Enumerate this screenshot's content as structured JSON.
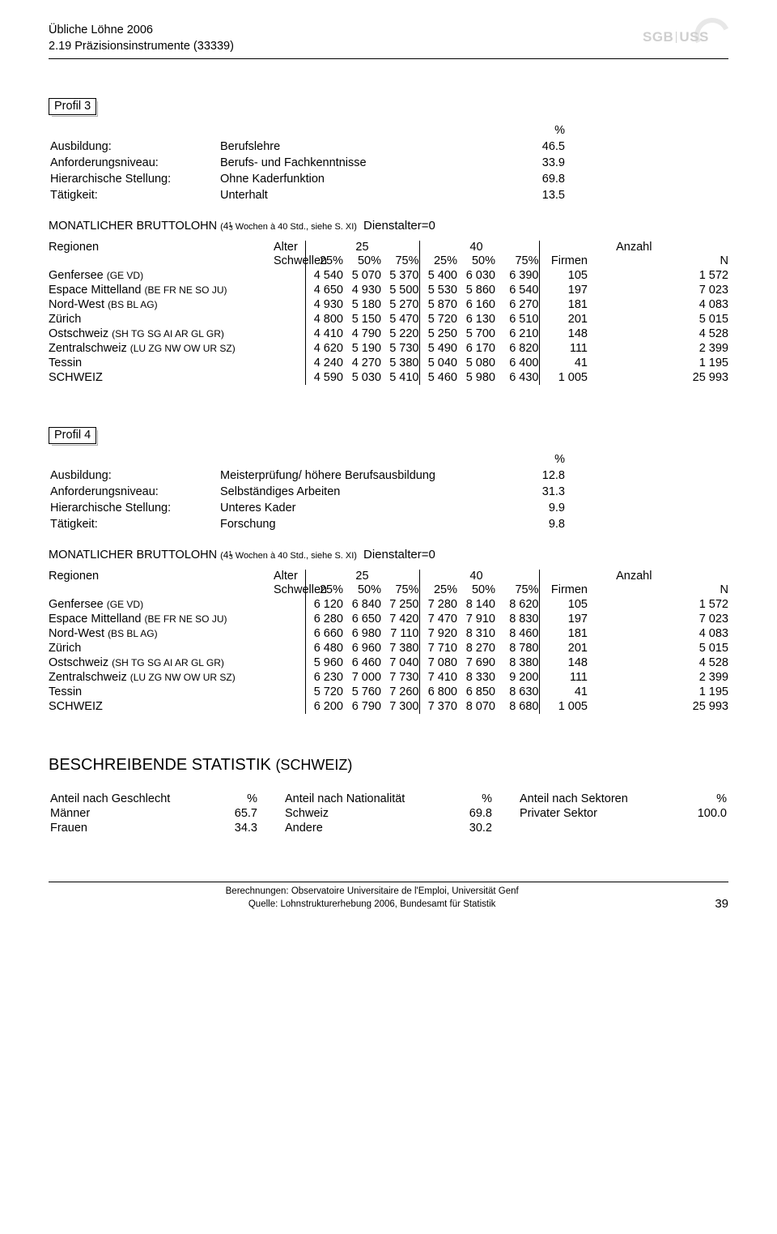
{
  "header": {
    "line1": "Übliche Löhne 2006",
    "line2": "2.19 Präzisionsinstrumente (33339)",
    "logo_left": "SGB",
    "logo_right": "USS"
  },
  "profiles": [
    {
      "title": "Profil 3",
      "attrs": [
        {
          "k": "Ausbildung:",
          "v": "Berufslehre",
          "p": "46.5"
        },
        {
          "k": "Anforderungsniveau:",
          "v": "Berufs- und Fachkenntnisse",
          "p": "33.9"
        },
        {
          "k": "Hierarchische Stellung:",
          "v": "Ohne Kaderfunktion",
          "p": "69.8"
        },
        {
          "k": "Tätigkeit:",
          "v": "Unterhalt",
          "p": "13.5"
        }
      ],
      "rows": [
        {
          "region": "Genfersee",
          "paren": "(GE VD)",
          "v": [
            "4 540",
            "5 070",
            "5 370",
            "5 400",
            "6 030",
            "6 390",
            "105",
            "1 572"
          ]
        },
        {
          "region": "Espace Mittelland",
          "paren": "(BE FR NE SO JU)",
          "v": [
            "4 650",
            "4 930",
            "5 500",
            "5 530",
            "5 860",
            "6 540",
            "197",
            "7 023"
          ]
        },
        {
          "region": "Nord-West",
          "paren": "(BS BL AG)",
          "v": [
            "4 930",
            "5 180",
            "5 270",
            "5 870",
            "6 160",
            "6 270",
            "181",
            "4 083"
          ]
        },
        {
          "region": "Zürich",
          "paren": "",
          "v": [
            "4 800",
            "5 150",
            "5 470",
            "5 720",
            "6 130",
            "6 510",
            "201",
            "5 015"
          ]
        },
        {
          "region": "Ostschweiz",
          "paren": "(SH TG SG AI AR GL GR)",
          "v": [
            "4 410",
            "4 790",
            "5 220",
            "5 250",
            "5 700",
            "6 210",
            "148",
            "4 528"
          ]
        },
        {
          "region": "Zentralschweiz",
          "paren": "(LU ZG NW OW UR SZ)",
          "v": [
            "4 620",
            "5 190",
            "5 730",
            "5 490",
            "6 170",
            "6 820",
            "111",
            "2 399"
          ]
        },
        {
          "region": "Tessin",
          "paren": "",
          "v": [
            "4 240",
            "4 270",
            "5 380",
            "5 040",
            "5 080",
            "6 400",
            "41",
            "1 195"
          ]
        },
        {
          "region": "SCHWEIZ",
          "paren": "",
          "v": [
            "4 590",
            "5 030",
            "5 410",
            "5 460",
            "5 980",
            "6 430",
            "1 005",
            "25 993"
          ]
        }
      ]
    },
    {
      "title": "Profil 4",
      "attrs": [
        {
          "k": "Ausbildung:",
          "v": "Meisterprüfung/ höhere Berufsausbildung",
          "p": "12.8"
        },
        {
          "k": "Anforderungsniveau:",
          "v": "Selbständiges Arbeiten",
          "p": "31.3"
        },
        {
          "k": "Hierarchische Stellung:",
          "v": "Unteres Kader",
          "p": "9.9"
        },
        {
          "k": "Tätigkeit:",
          "v": "Forschung",
          "p": "9.8"
        }
      ],
      "rows": [
        {
          "region": "Genfersee",
          "paren": "(GE VD)",
          "v": [
            "6 120",
            "6 840",
            "7 250",
            "7 280",
            "8 140",
            "8 620",
            "105",
            "1 572"
          ]
        },
        {
          "region": "Espace Mittelland",
          "paren": "(BE FR NE SO JU)",
          "v": [
            "6 280",
            "6 650",
            "7 420",
            "7 470",
            "7 910",
            "8 830",
            "197",
            "7 023"
          ]
        },
        {
          "region": "Nord-West",
          "paren": "(BS BL AG)",
          "v": [
            "6 660",
            "6 980",
            "7 110",
            "7 920",
            "8 310",
            "8 460",
            "181",
            "4 083"
          ]
        },
        {
          "region": "Zürich",
          "paren": "",
          "v": [
            "6 480",
            "6 960",
            "7 380",
            "7 710",
            "8 270",
            "8 780",
            "201",
            "5 015"
          ]
        },
        {
          "region": "Ostschweiz",
          "paren": "(SH TG SG AI AR GL GR)",
          "v": [
            "5 960",
            "6 460",
            "7 040",
            "7 080",
            "7 690",
            "8 380",
            "148",
            "4 528"
          ]
        },
        {
          "region": "Zentralschweiz",
          "paren": "(LU ZG NW OW UR SZ)",
          "v": [
            "6 230",
            "7 000",
            "7 730",
            "7 410",
            "8 330",
            "9 200",
            "111",
            "2 399"
          ]
        },
        {
          "region": "Tessin",
          "paren": "",
          "v": [
            "5 720",
            "5 760",
            "7 260",
            "6 800",
            "6 850",
            "8 630",
            "41",
            "1 195"
          ]
        },
        {
          "region": "SCHWEIZ",
          "paren": "",
          "v": [
            "6 200",
            "6 790",
            "7 300",
            "7 370",
            "8 070",
            "8 680",
            "1 005",
            "25 993"
          ]
        }
      ]
    }
  ],
  "table_header": {
    "regionen": "Regionen",
    "alter": "Alter",
    "age1": "25",
    "age2": "40",
    "anzahl": "Anzahl",
    "schwellen": "Schwellen",
    "p25": "25%",
    "p50": "50%",
    "p75": "75%",
    "firmen": "Firmen",
    "n": "N"
  },
  "brutto": {
    "label": "MONATLICHER BRUTTOLOHN",
    "tail1": " Wochen à 40 Std., siehe S. XI)",
    "dienst": "Dienstalter=0"
  },
  "stats": {
    "title": "BESCHREIBENDE STATISTIK",
    "paren": "(SCHWEIZ)",
    "blocks": [
      {
        "h": "Anteil nach Geschlecht",
        "rows": [
          [
            "Männer",
            "65.7"
          ],
          [
            "Frauen",
            "34.3"
          ]
        ]
      },
      {
        "h": "Anteil nach Nationalität",
        "rows": [
          [
            "Schweiz",
            "69.8"
          ],
          [
            "Andere",
            "30.2"
          ]
        ]
      },
      {
        "h": "Anteil nach Sektoren",
        "rows": [
          [
            "Privater Sektor",
            "100.0"
          ]
        ]
      }
    ],
    "pct": "%"
  },
  "footer": {
    "l1": "Berechnungen: Observatoire Universitaire de l'Emploi, Universität Genf",
    "l2": "Quelle: Lohnstrukturerhebung 2006, Bundesamt für Statistik",
    "page": "39"
  }
}
